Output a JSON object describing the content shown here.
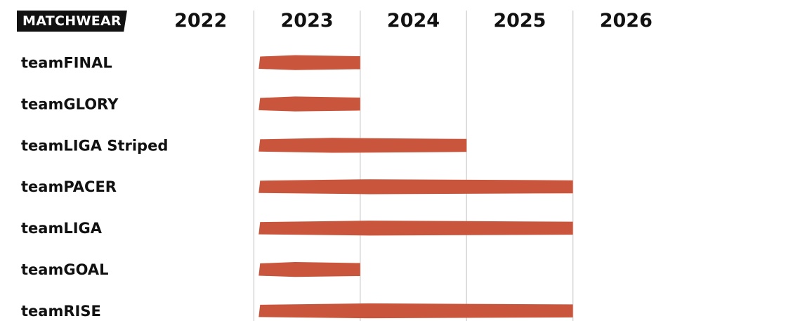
{
  "header": {
    "badge_label": "MATCHWEAR"
  },
  "colors": {
    "bar": "#c9553c",
    "grid": "#d6d6d6",
    "text": "#111111",
    "badge_bg": "#111111",
    "badge_text": "#ffffff"
  },
  "chart_data": {
    "type": "bar",
    "orientation": "horizontal-timeline",
    "title": "",
    "xlabel": "",
    "ylabel": "",
    "x_ticks": [
      "2022",
      "2023",
      "2024",
      "2025",
      "2026"
    ],
    "xlim": [
      2021,
      2026
    ],
    "grid": true,
    "categories": [
      "teamFINAL",
      "teamGLORY",
      "teamLIGA Striped",
      "teamPACER",
      "teamLIGA",
      "teamGOAL",
      "teamRISE"
    ],
    "ranges": [
      {
        "start": 2021.2,
        "end": 2023.0
      },
      {
        "start": 2021.2,
        "end": 2023.0
      },
      {
        "start": 2021.2,
        "end": 2024.0
      },
      {
        "start": 2021.2,
        "end": 2025.0
      },
      {
        "start": 2021.2,
        "end": 2025.0
      },
      {
        "start": 2021.2,
        "end": 2023.0
      },
      {
        "start": 2021.2,
        "end": 2025.0
      }
    ]
  }
}
